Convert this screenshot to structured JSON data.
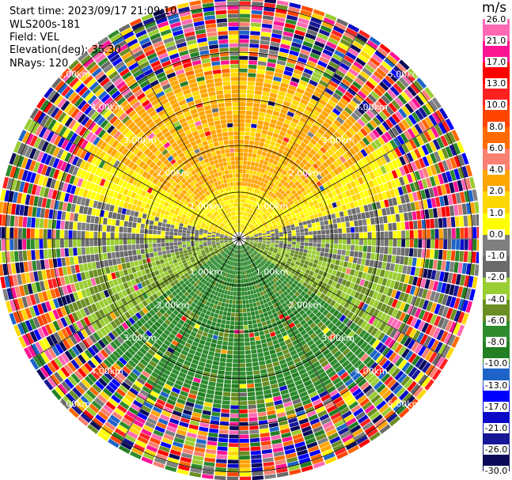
{
  "header": {
    "start_time": "Start time: 2023/09/17 21:09:10",
    "instrument": "WLS200s-181",
    "field": "Field: VEL",
    "elevation": "Elevation(deg): 35.30",
    "nrays": "NRays: 120"
  },
  "chart_data": {
    "type": "ppi-polar-heatmap",
    "field": "VEL",
    "unit": "m/s",
    "nrays": 120,
    "elevation_deg": 35.3,
    "range_rings_km": [
      1,
      2,
      3,
      4,
      5
    ],
    "range_ring_labels": [
      "1.00km",
      "2.00km",
      "3.00km",
      "4.00km",
      "5.00km"
    ],
    "colorbar": {
      "colors": [
        "#0a0a5a",
        "#161696",
        "#0a0ac8",
        "#0000ff",
        "#1e64c8",
        "#237f23",
        "#2e8b2e",
        "#6b8e23",
        "#9acd32",
        "#6a6a6a",
        "#7f7f7f",
        "#ffff00",
        "#ffd700",
        "#ffa500",
        "#fa8072",
        "#ff6a00",
        "#ff4500",
        "#ff2020",
        "#ff0000",
        "#ff1493",
        "#ff69b4"
      ],
      "tick_labels": [
        "-30.0",
        "-26.0",
        "-21.0",
        "-17.0",
        "-13.0",
        "-10.0",
        "-8.0",
        "-6.0",
        "-4.0",
        "-2.0",
        "-1.0",
        "0.0",
        "1.0",
        "2.0",
        "4.0",
        "6.0",
        "8.0",
        "10.0",
        "13.0",
        "17.0",
        "21.0",
        "26.0"
      ]
    }
  }
}
